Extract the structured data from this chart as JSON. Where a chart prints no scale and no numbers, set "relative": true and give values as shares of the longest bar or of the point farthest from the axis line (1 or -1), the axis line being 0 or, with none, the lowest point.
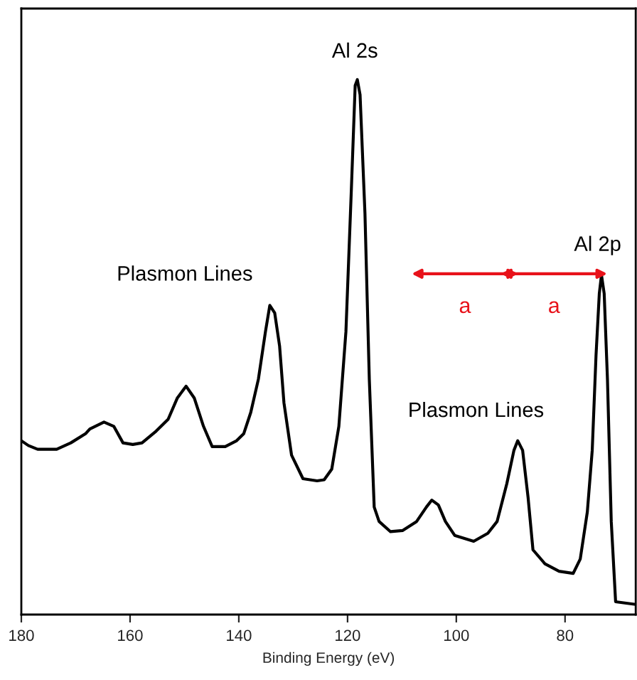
{
  "chart_data": {
    "type": "line",
    "xlabel": "Binding Energy (eV)",
    "relative": true,
    "color": "#000000",
    "x": [
      180.0,
      178.7,
      177.0,
      173.5,
      170.9,
      168.2,
      167.4,
      164.8,
      163.0,
      161.3,
      159.5,
      157.8,
      155.2,
      153.0,
      151.3,
      149.7,
      148.2,
      146.5,
      144.9,
      142.5,
      140.4,
      139.1,
      137.8,
      136.4,
      135.1,
      134.3,
      133.4,
      132.5,
      131.7,
      130.3,
      128.2,
      125.6,
      124.3,
      122.9,
      121.6,
      120.3,
      119.3,
      118.6,
      118.2,
      117.7,
      116.8,
      116.0,
      115.1,
      114.2,
      112.1,
      109.9,
      107.3,
      105.5,
      104.5,
      103.3,
      102.0,
      100.3,
      96.8,
      94.2,
      92.5,
      90.7,
      89.4,
      88.7,
      87.8,
      86.8,
      85.9,
      83.7,
      81.1,
      78.5,
      77.2,
      75.9,
      75.0,
      74.3,
      73.7,
      73.3,
      72.8,
      72.2,
      71.5,
      70.7,
      67.0
    ],
    "values": [
      0.325,
      0.316,
      0.309,
      0.309,
      0.321,
      0.338,
      0.347,
      0.36,
      0.352,
      0.321,
      0.318,
      0.321,
      0.343,
      0.365,
      0.405,
      0.427,
      0.405,
      0.352,
      0.314,
      0.314,
      0.325,
      0.338,
      0.378,
      0.44,
      0.529,
      0.578,
      0.564,
      0.502,
      0.396,
      0.298,
      0.254,
      0.25,
      0.252,
      0.272,
      0.352,
      0.529,
      0.795,
      0.989,
      1.0,
      0.972,
      0.75,
      0.44,
      0.201,
      0.174,
      0.155,
      0.157,
      0.174,
      0.201,
      0.214,
      0.205,
      0.174,
      0.148,
      0.137,
      0.152,
      0.174,
      0.245,
      0.307,
      0.325,
      0.307,
      0.219,
      0.121,
      0.095,
      0.081,
      0.077,
      0.104,
      0.192,
      0.307,
      0.485,
      0.6,
      0.635,
      0.6,
      0.44,
      0.174,
      0.024,
      0.019
    ],
    "xlim": [
      180,
      67
    ],
    "xticks": [
      180,
      160,
      140,
      120,
      100,
      80
    ],
    "tick_labels": "x",
    "grid": false,
    "legend": false,
    "annotations": [
      "Al 2s",
      "Plasmon Lines",
      "Plasmon Lines",
      "Al 2p",
      "a",
      "a"
    ]
  }
}
